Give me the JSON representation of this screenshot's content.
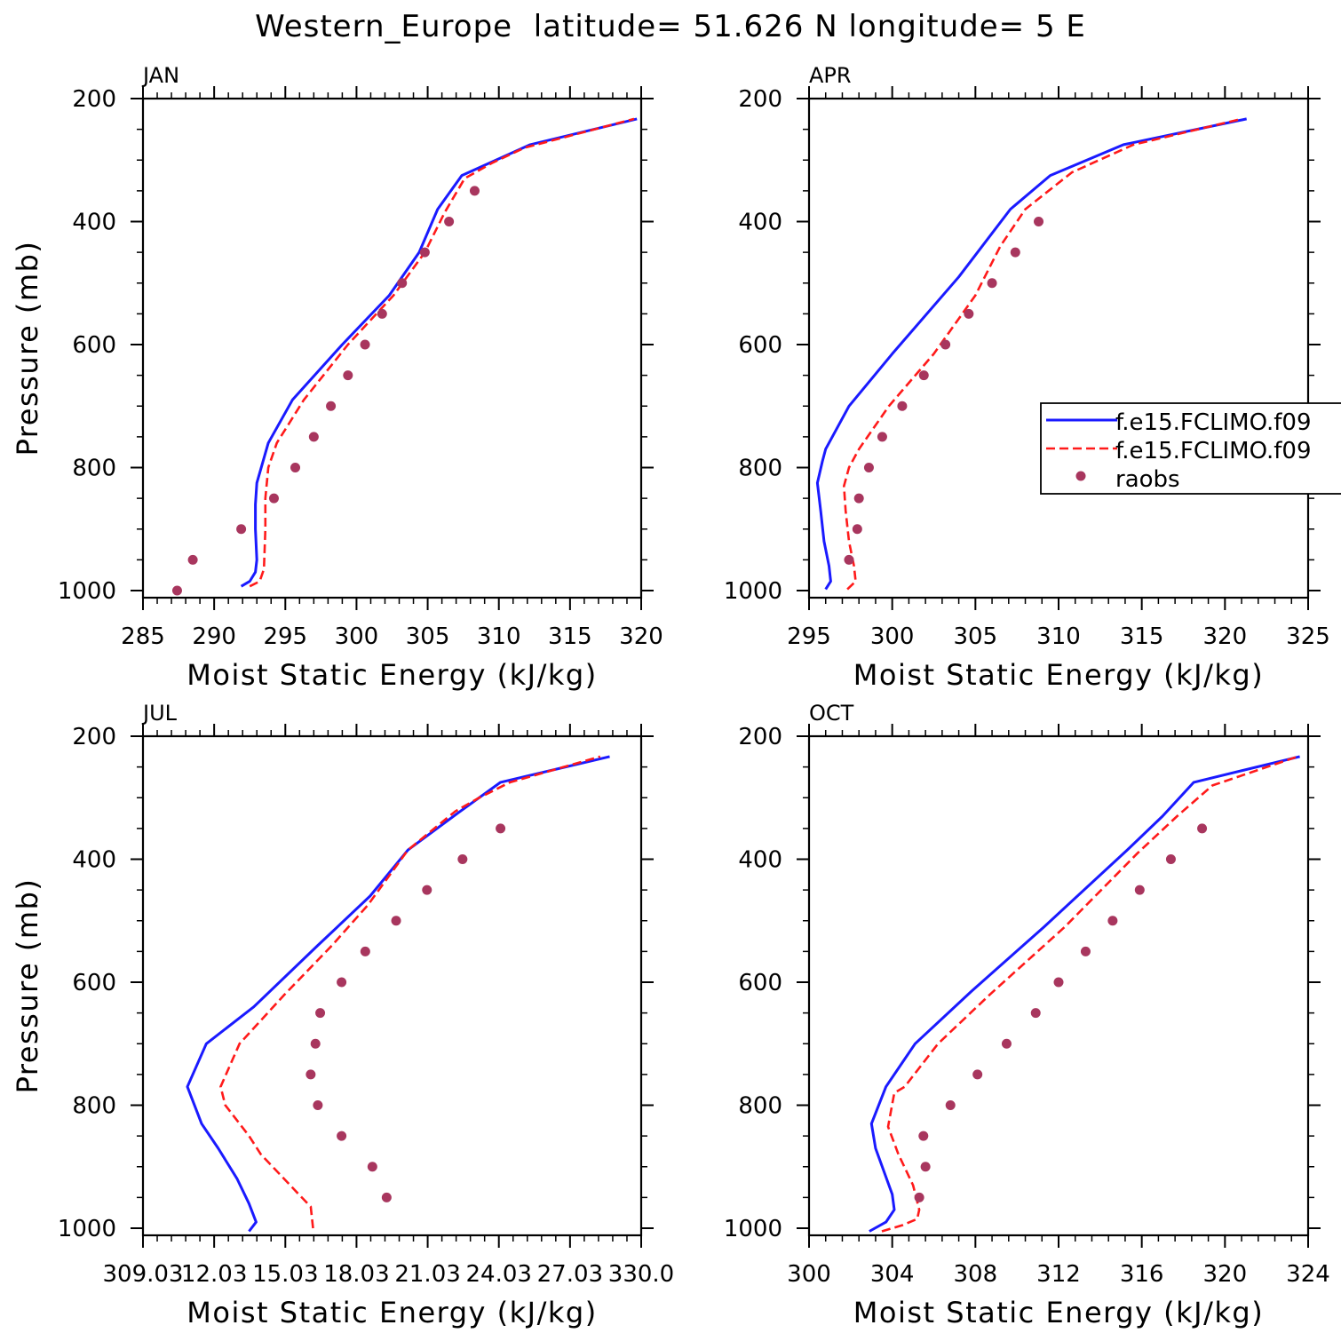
{
  "figure_title": "Western_Europe  latitude= 51.626 N longitude= 5 E",
  "colors": {
    "model1": "#1a1aff",
    "model2": "#ff1a1a",
    "raobs": "#a8365e",
    "axis": "#000000"
  },
  "legend": {
    "panel": "APR",
    "entries": [
      "f.e15.FCLIMO.f09",
      "f.e15.FCLIMO.f09",
      "raobs"
    ]
  },
  "chart_data": [
    {
      "type": "line",
      "panel_label": "JAN",
      "xlabel": "Moist Static Energy (kJ/kg)",
      "ylabel": "Pressure (mb)",
      "xlim": [
        285,
        320
      ],
      "ylim": [
        1000,
        200
      ],
      "x_ticks": [
        "285",
        "290",
        "295",
        "300",
        "305",
        "310",
        "315",
        "320"
      ],
      "x_tick_values": [
        285,
        290,
        295,
        300,
        305,
        310,
        315,
        320
      ],
      "y_ticks": [
        "200",
        "400",
        "600",
        "800",
        "1000"
      ],
      "y_tick_values": [
        200,
        400,
        600,
        800,
        1000
      ],
      "series": [
        {
          "kind": "solid",
          "color": "#1a1aff",
          "points": [
            [
              291.9,
              993
            ],
            [
              292.5,
              985
            ],
            [
              292.9,
              970
            ],
            [
              293.0,
              950
            ],
            [
              292.9,
              900
            ],
            [
              292.9,
              860
            ],
            [
              293.0,
              825
            ],
            [
              293.8,
              760
            ],
            [
              295.5,
              690
            ],
            [
              299.0,
              600
            ],
            [
              302.3,
              520
            ],
            [
              304.4,
              450
            ],
            [
              305.7,
              380
            ],
            [
              307.4,
              325
            ],
            [
              312.2,
              275
            ],
            [
              319.7,
              233
            ]
          ]
        },
        {
          "kind": "dashed",
          "color": "#ff1a1a",
          "points": [
            [
              292.5,
              993
            ],
            [
              293.2,
              985
            ],
            [
              293.5,
              965
            ],
            [
              293.6,
              900
            ],
            [
              293.6,
              850
            ],
            [
              293.8,
              800
            ],
            [
              294.4,
              760
            ],
            [
              296.3,
              690
            ],
            [
              299.4,
              600
            ],
            [
              302.6,
              520
            ],
            [
              304.8,
              450
            ],
            [
              306.2,
              385
            ],
            [
              307.6,
              330
            ],
            [
              309.5,
              305
            ],
            [
              311.8,
              280
            ],
            [
              319.5,
              233
            ]
          ]
        },
        {
          "kind": "markers",
          "color": "#a8365e",
          "points": [
            [
              287.4,
              1000
            ],
            [
              288.5,
              950
            ],
            [
              291.9,
              900
            ],
            [
              294.2,
              850
            ],
            [
              295.7,
              800
            ],
            [
              297.0,
              750
            ],
            [
              298.2,
              700
            ],
            [
              299.4,
              650
            ],
            [
              300.6,
              600
            ],
            [
              301.8,
              550
            ],
            [
              303.2,
              500
            ],
            [
              304.8,
              450
            ],
            [
              306.5,
              400
            ],
            [
              308.3,
              350
            ]
          ]
        }
      ]
    },
    {
      "type": "line",
      "panel_label": "APR",
      "xlabel": "Moist Static Energy (kJ/kg)",
      "ylabel": "",
      "xlim": [
        295,
        325
      ],
      "ylim": [
        1000,
        200
      ],
      "x_ticks": [
        "295",
        "300",
        "305",
        "310",
        "315",
        "320",
        "325"
      ],
      "x_tick_values": [
        295,
        300,
        305,
        310,
        315,
        320,
        325
      ],
      "y_ticks": [
        "200",
        "400",
        "600",
        "800",
        "1000"
      ],
      "y_tick_values": [
        200,
        400,
        600,
        800,
        1000
      ],
      "series": [
        {
          "kind": "solid",
          "color": "#1a1aff",
          "points": [
            [
              296.0,
              998
            ],
            [
              296.3,
              985
            ],
            [
              296.2,
              960
            ],
            [
              295.9,
              920
            ],
            [
              295.7,
              870
            ],
            [
              295.5,
              825
            ],
            [
              295.8,
              790
            ],
            [
              296.0,
              770
            ],
            [
              297.4,
              700
            ],
            [
              300.0,
              615
            ],
            [
              304.0,
              490
            ],
            [
              307.1,
              380
            ],
            [
              309.5,
              325
            ],
            [
              313.9,
              275
            ],
            [
              321.3,
              233
            ]
          ]
        },
        {
          "kind": "dashed",
          "color": "#ff1a1a",
          "points": [
            [
              297.3,
              998
            ],
            [
              297.8,
              985
            ],
            [
              297.7,
              960
            ],
            [
              297.4,
              920
            ],
            [
              297.2,
              870
            ],
            [
              297.1,
              830
            ],
            [
              297.4,
              800
            ],
            [
              298.0,
              770
            ],
            [
              299.8,
              700
            ],
            [
              302.5,
              615
            ],
            [
              305.0,
              520
            ],
            [
              306.5,
              440
            ],
            [
              308.0,
              380
            ],
            [
              310.8,
              320
            ],
            [
              314.5,
              275
            ],
            [
              321.0,
              233
            ]
          ]
        },
        {
          "kind": "markers",
          "color": "#a8365e",
          "points": [
            [
              297.4,
              950
            ],
            [
              297.9,
              900
            ],
            [
              298.0,
              850
            ],
            [
              298.6,
              800
            ],
            [
              299.4,
              750
            ],
            [
              300.6,
              700
            ],
            [
              301.9,
              650
            ],
            [
              303.2,
              600
            ],
            [
              304.6,
              550
            ],
            [
              306.0,
              500
            ],
            [
              307.4,
              450
            ],
            [
              308.8,
              400
            ]
          ]
        }
      ]
    },
    {
      "type": "line",
      "panel_label": "JUL",
      "xlabel": "Moist Static Energy (kJ/kg)",
      "ylabel": "Pressure (mb)",
      "xlim": [
        309.03,
        330.03
      ],
      "ylim": [
        1000,
        200
      ],
      "x_ticks": [
        "309.03",
        "12.03",
        "15.03",
        "18.03",
        "21.03",
        "24.03",
        "27.03",
        "330.0"
      ],
      "x_tick_values": [
        309.03,
        312.03,
        315.03,
        318.03,
        321.03,
        324.03,
        327.03,
        330.03
      ],
      "y_ticks": [
        "200",
        "400",
        "600",
        "800",
        "1000"
      ],
      "y_tick_values": [
        200,
        400,
        600,
        800,
        1000
      ],
      "series": [
        {
          "kind": "solid",
          "color": "#1a1aff",
          "points": [
            [
              313.5,
              1005
            ],
            [
              313.8,
              990
            ],
            [
              313.5,
              960
            ],
            [
              313.0,
              920
            ],
            [
              312.2,
              870
            ],
            [
              311.5,
              830
            ],
            [
              310.9,
              770
            ],
            [
              311.7,
              700
            ],
            [
              313.7,
              640
            ],
            [
              316.4,
              540
            ],
            [
              318.6,
              460
            ],
            [
              320.2,
              385
            ],
            [
              322.3,
              325
            ],
            [
              324.1,
              275
            ],
            [
              328.7,
              233
            ]
          ]
        },
        {
          "kind": "dashed",
          "color": "#ff1a1a",
          "points": [
            [
              316.2,
              1000
            ],
            [
              316.1,
              965
            ],
            [
              315.6,
              945
            ],
            [
              314.0,
              880
            ],
            [
              313.5,
              850
            ],
            [
              312.5,
              800
            ],
            [
              312.3,
              770
            ],
            [
              313.1,
              700
            ],
            [
              315.0,
              620
            ],
            [
              317.0,
              540
            ],
            [
              318.5,
              475
            ],
            [
              320.2,
              385
            ],
            [
              322.2,
              322
            ],
            [
              323.2,
              300
            ],
            [
              324.5,
              275
            ],
            [
              328.3,
              233
            ]
          ]
        },
        {
          "kind": "markers",
          "color": "#a8365e",
          "points": [
            [
              319.3,
              950
            ],
            [
              318.7,
              900
            ],
            [
              317.4,
              850
            ],
            [
              316.4,
              800
            ],
            [
              316.1,
              750
            ],
            [
              316.3,
              700
            ],
            [
              316.5,
              650
            ],
            [
              317.4,
              600
            ],
            [
              318.4,
              550
            ],
            [
              319.7,
              500
            ],
            [
              321.0,
              450
            ],
            [
              322.5,
              400
            ],
            [
              324.1,
              350
            ]
          ]
        }
      ]
    },
    {
      "type": "line",
      "panel_label": "OCT",
      "xlabel": "Moist Static Energy (kJ/kg)",
      "ylabel": "",
      "xlim": [
        300,
        324
      ],
      "ylim": [
        1000,
        200
      ],
      "x_ticks": [
        "300",
        "304",
        "308",
        "312",
        "316",
        "320",
        "324"
      ],
      "x_tick_values": [
        300,
        304,
        308,
        312,
        316,
        320,
        324
      ],
      "y_ticks": [
        "200",
        "400",
        "600",
        "800",
        "1000"
      ],
      "y_tick_values": [
        200,
        400,
        600,
        800,
        1000
      ],
      "series": [
        {
          "kind": "solid",
          "color": "#1a1aff",
          "points": [
            [
              302.9,
              1005
            ],
            [
              303.7,
              990
            ],
            [
              304.1,
              970
            ],
            [
              304.0,
              945
            ],
            [
              303.2,
              870
            ],
            [
              303.0,
              830
            ],
            [
              303.7,
              770
            ],
            [
              305.1,
              700
            ],
            [
              307.8,
              615
            ],
            [
              311.3,
              510
            ],
            [
              315.3,
              385
            ],
            [
              317.0,
              330
            ],
            [
              318.5,
              275
            ],
            [
              323.6,
              233
            ]
          ]
        },
        {
          "kind": "dashed",
          "color": "#ff1a1a",
          "points": [
            [
              303.5,
              1005
            ],
            [
              304.5,
              995
            ],
            [
              305.2,
              985
            ],
            [
              305.3,
              970
            ],
            [
              305.0,
              930
            ],
            [
              304.3,
              880
            ],
            [
              303.8,
              835
            ],
            [
              304.1,
              780
            ],
            [
              304.6,
              770
            ],
            [
              306.2,
              700
            ],
            [
              308.7,
              620
            ],
            [
              312.3,
              510
            ],
            [
              315.8,
              390
            ],
            [
              317.7,
              330
            ],
            [
              319.4,
              280
            ],
            [
              323.5,
              233
            ]
          ]
        },
        {
          "kind": "markers",
          "color": "#a8365e",
          "points": [
            [
              305.3,
              950
            ],
            [
              305.6,
              900
            ],
            [
              305.5,
              850
            ],
            [
              306.8,
              800
            ],
            [
              308.1,
              750
            ],
            [
              309.5,
              700
            ],
            [
              310.9,
              650
            ],
            [
              312.0,
              600
            ],
            [
              313.3,
              550
            ],
            [
              314.6,
              500
            ],
            [
              315.9,
              450
            ],
            [
              317.4,
              400
            ],
            [
              318.9,
              350
            ]
          ]
        }
      ]
    }
  ]
}
